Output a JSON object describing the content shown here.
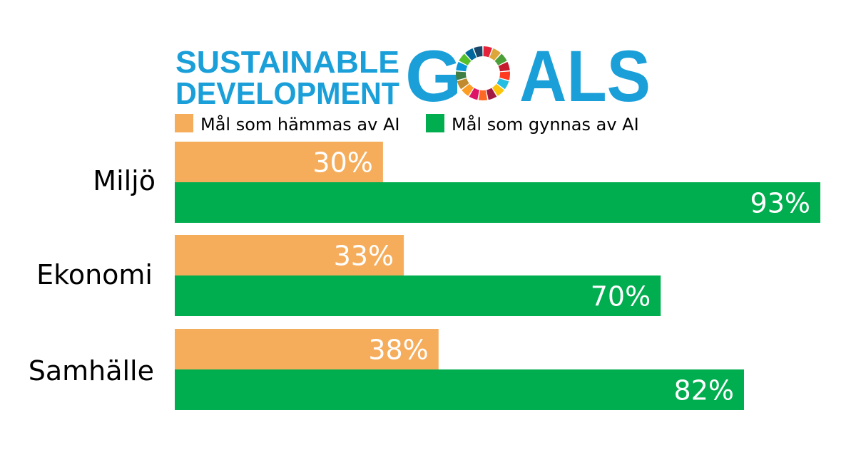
{
  "logo": {
    "line1": "SUSTAINABLE",
    "line2": "DEVELOPMENT",
    "big_g": "G",
    "big_als": "ALS",
    "color": "#1a9fd9",
    "wheel_colors": [
      "#e5243b",
      "#dda63a",
      "#4c9f38",
      "#c5192d",
      "#ff3a21",
      "#26bde2",
      "#fcc30b",
      "#a21942",
      "#fd6925",
      "#dd1367",
      "#fd9d24",
      "#bf8b2e",
      "#3f7e44",
      "#0a97d9",
      "#56c02b",
      "#00689d",
      "#19486a"
    ]
  },
  "chart_data": {
    "type": "bar",
    "orientation": "horizontal",
    "categories": [
      "Miljö",
      "Ekonomi",
      "Samhälle"
    ],
    "series": [
      {
        "name": "Mål som hämmas av AI",
        "color": "#f5ad5c",
        "values": [
          30,
          33,
          38
        ],
        "labels": [
          "30%",
          "33%",
          "38%"
        ]
      },
      {
        "name": "Mål som gynnas av AI",
        "color": "#00ad4f",
        "values": [
          93,
          70,
          82
        ],
        "labels": [
          "93%",
          "70%",
          "82%"
        ]
      }
    ],
    "xlim": [
      0,
      93
    ],
    "grid": false,
    "legend_position": "top"
  }
}
